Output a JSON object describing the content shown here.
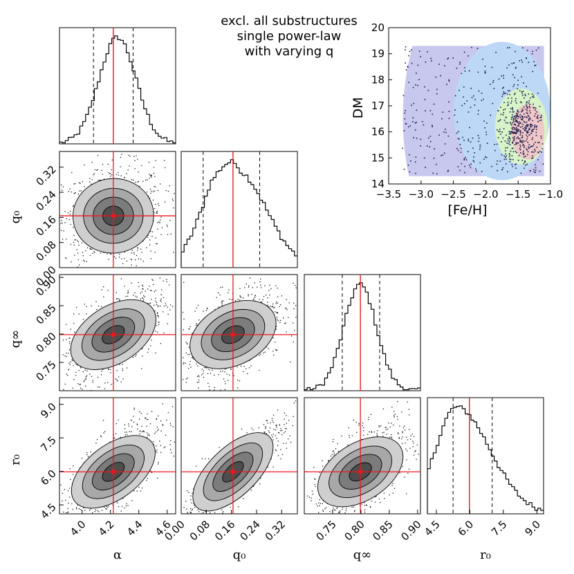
{
  "chart_data": {
    "type": "corner",
    "title_lines": [
      "excl. all substructures",
      "single power-law",
      "with varying q"
    ],
    "parameters": [
      {
        "name": "alpha",
        "label": "α",
        "range": [
          3.84,
          4.66
        ],
        "ticks": [
          "4.0",
          "4.2",
          "4.4",
          "4.6"
        ],
        "tick_values": [
          4.0,
          4.2,
          4.4,
          4.6
        ],
        "median": 4.22,
        "low": 4.08,
        "high": 4.36,
        "truth": 4.22
      },
      {
        "name": "q0",
        "label": "q₀",
        "range": [
          0.0,
          0.37
        ],
        "ticks": [
          "0.00",
          "0.08",
          "0.16",
          "0.24",
          "0.32"
        ],
        "tick_values": [
          0.0,
          0.08,
          0.16,
          0.24,
          0.32
        ],
        "median": 0.165,
        "low": 0.07,
        "high": 0.25,
        "truth": 0.165
      },
      {
        "name": "qinf",
        "label": "q∞",
        "range": [
          0.7,
          0.905
        ],
        "ticks": [
          "0.75",
          "0.80",
          "0.85",
          "0.90"
        ],
        "tick_values": [
          0.75,
          0.8,
          0.85,
          0.9
        ],
        "median": 0.799,
        "low": 0.767,
        "high": 0.833,
        "truth": 0.799
      },
      {
        "name": "r0",
        "label": "r₀",
        "range": [
          4.1,
          9.3
        ],
        "ticks": [
          "4.5",
          "6.0",
          "7.5",
          "9.0"
        ],
        "tick_values": [
          4.5,
          6.0,
          7.5,
          9.0
        ],
        "median": 5.98,
        "low": 5.25,
        "high": 7.0,
        "truth": 5.98
      }
    ],
    "q0_y_ticks": [
      "0.00",
      "0.08",
      "0.16",
      "0.24",
      "0.32"
    ],
    "qinf_y_ticks": [
      "0.75",
      "0.80",
      "0.85",
      "0.90"
    ],
    "r0_y_ticks": [
      "4.5",
      "6.0",
      "7.5",
      "9.0"
    ],
    "inset": {
      "xlabel": "[Fe/H]",
      "ylabel": "DM",
      "xlim": [
        -3.5,
        -1.0
      ],
      "ylim": [
        14,
        20
      ],
      "xticks": [
        "−3.5",
        "−3.0",
        "−2.5",
        "−2.0",
        "−1.5",
        "−1.0"
      ],
      "xtick_values": [
        -3.5,
        -3.0,
        -2.5,
        -2.0,
        -1.5,
        -1.0
      ],
      "yticks": [
        "14",
        "15",
        "16",
        "17",
        "18",
        "19",
        "20"
      ],
      "ytick_values": [
        14,
        15,
        16,
        17,
        18,
        19,
        20
      ]
    },
    "colors": {
      "truth": "#e8171b",
      "hist": "#000000",
      "density_fill": "#9a9a9a",
      "inset_bg": "#c8c8ee",
      "inset_mid": "#bcd8f6",
      "inset_green": "#d7f3c8",
      "inset_red": "#efc7c7",
      "inset_points": "#12164a"
    }
  }
}
